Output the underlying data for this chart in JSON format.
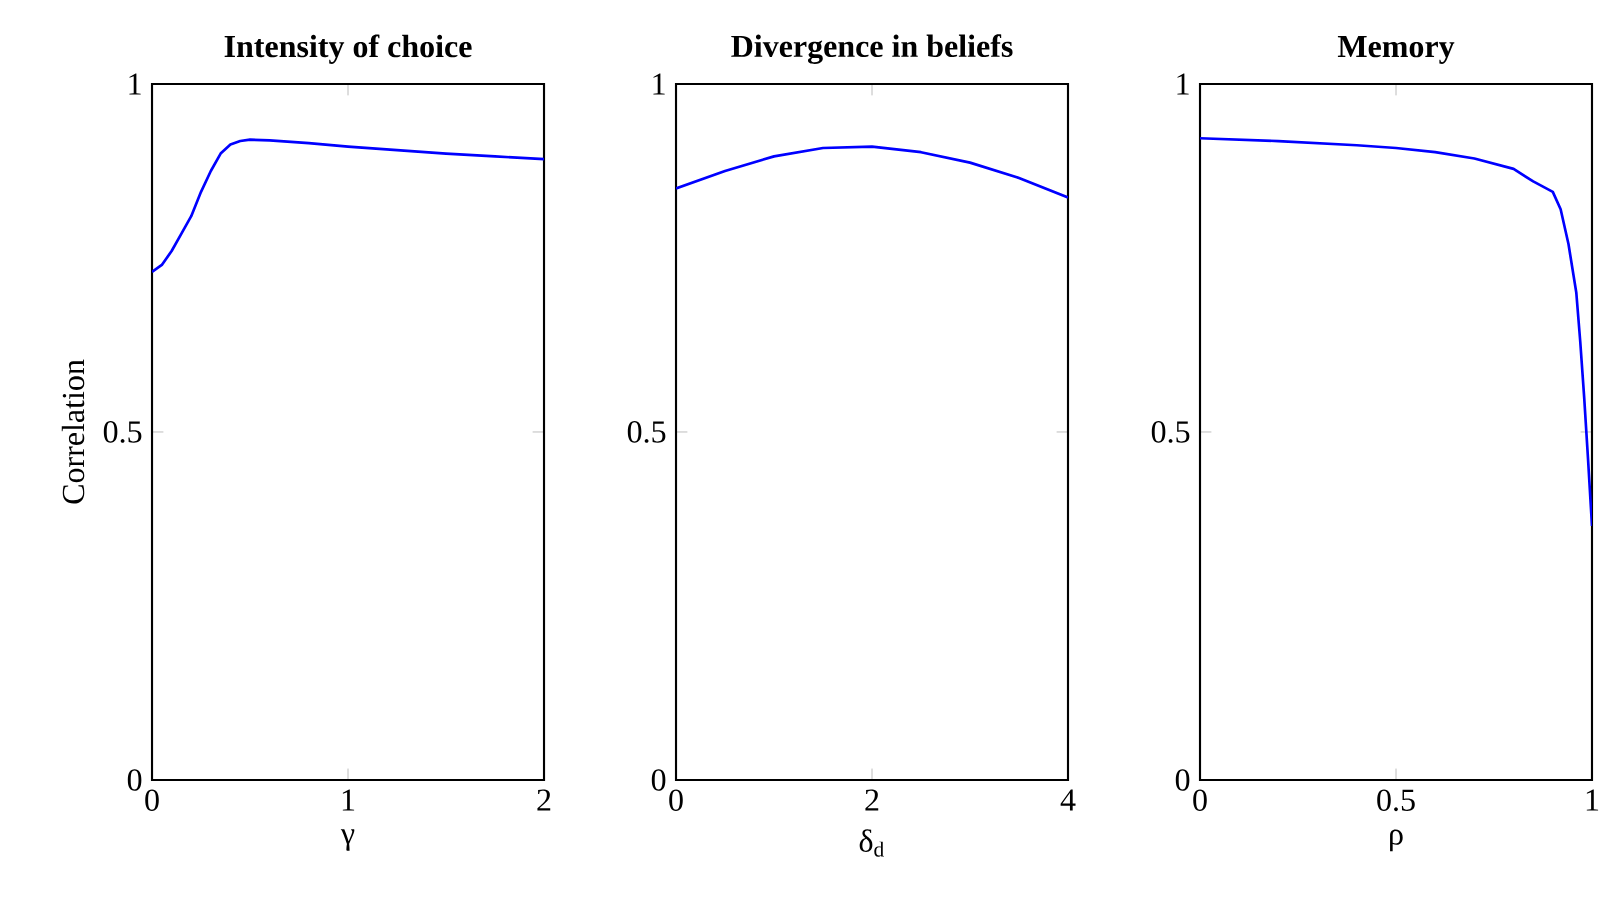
{
  "chart_data": [
    {
      "type": "line",
      "title": "**Intensity of choice**",
      "xlabel": "γ",
      "ylabel": "Correlation",
      "xlim": [
        0,
        2
      ],
      "ylim": [
        0,
        1
      ],
      "xticks": [
        0,
        1,
        2
      ],
      "yticks": [
        0,
        0.5,
        1
      ],
      "grid": false,
      "series": [
        {
          "color": "#0000ff",
          "x": [
            0,
            0.05,
            0.1,
            0.15,
            0.2,
            0.25,
            0.3,
            0.35,
            0.4,
            0.45,
            0.5,
            0.6,
            0.8,
            1.0,
            1.25,
            1.5,
            1.75,
            2.0
          ],
          "values": [
            0.73,
            0.74,
            0.76,
            0.785,
            0.81,
            0.845,
            0.875,
            0.9,
            0.913,
            0.918,
            0.92,
            0.919,
            0.915,
            0.91,
            0.905,
            0.9,
            0.896,
            0.892
          ]
        }
      ]
    },
    {
      "type": "line",
      "title": "**Divergence in beliefs**",
      "xlabel": "δ$_{d}$",
      "xlim": [
        0,
        4
      ],
      "ylim": [
        0,
        1
      ],
      "xticks": [
        0,
        2,
        4
      ],
      "yticks": [
        0,
        0.5,
        1
      ],
      "grid": false,
      "series": [
        {
          "color": "#0000ff",
          "x": [
            0,
            0.5,
            1,
            1.5,
            2,
            2.5,
            3,
            3.5,
            4
          ],
          "values": [
            0.85,
            0.875,
            0.896,
            0.908,
            0.91,
            0.902,
            0.887,
            0.865,
            0.837
          ]
        }
      ]
    },
    {
      "type": "line",
      "title": "**Memory**",
      "xlabel": "ρ",
      "xlim": [
        0,
        1
      ],
      "ylim": [
        0,
        1
      ],
      "xticks": [
        0,
        0.5,
        1
      ],
      "yticks": [
        0,
        0.5,
        1
      ],
      "grid": false,
      "series": [
        {
          "color": "#0000ff",
          "x": [
            0,
            0.2,
            0.4,
            0.5,
            0.6,
            0.7,
            0.8,
            0.85,
            0.9,
            0.92,
            0.94,
            0.96,
            0.97,
            0.98,
            0.99,
            1.0
          ],
          "values": [
            0.922,
            0.918,
            0.912,
            0.908,
            0.902,
            0.893,
            0.878,
            0.86,
            0.845,
            0.82,
            0.77,
            0.7,
            0.63,
            0.55,
            0.46,
            0.365
          ]
        }
      ]
    }
  ]
}
